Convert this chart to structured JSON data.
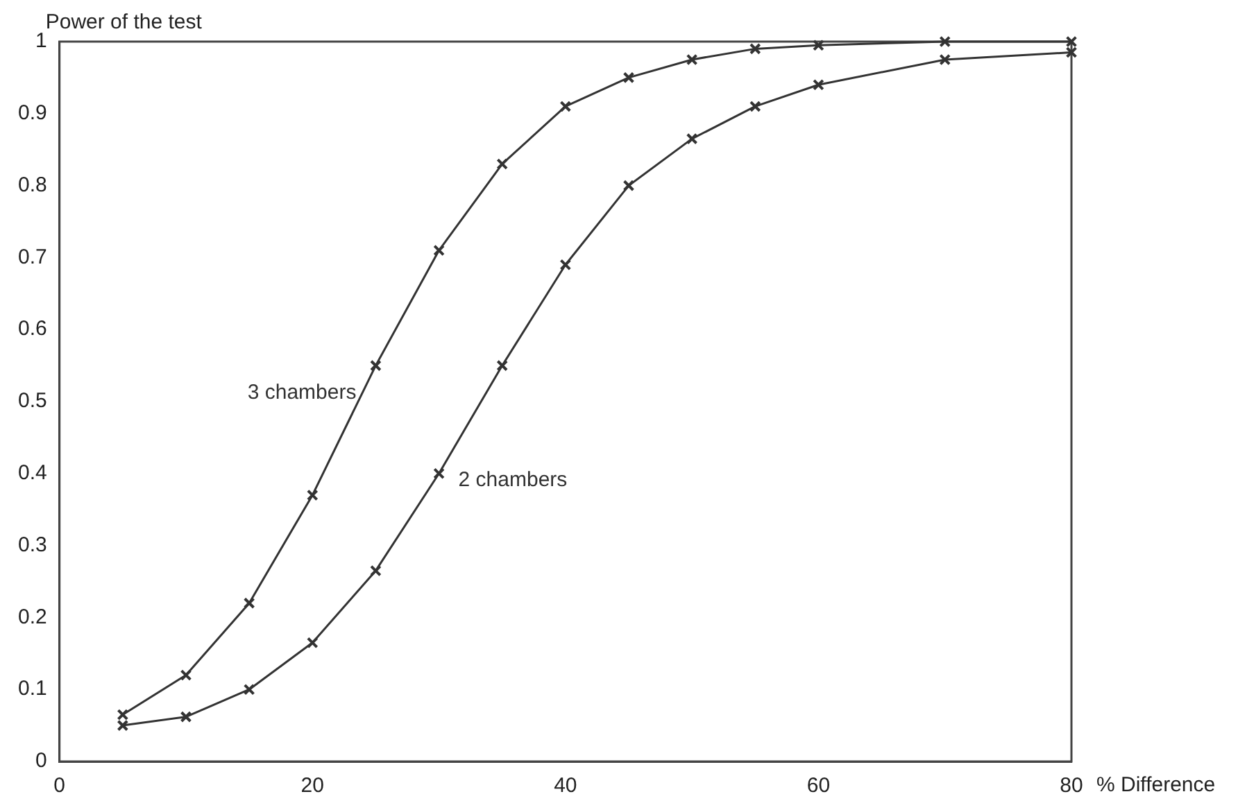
{
  "chart_data": {
    "type": "line",
    "ylabel": "Power of the test",
    "xlabel": "% Difference",
    "x": [
      5,
      10,
      15,
      20,
      25,
      30,
      35,
      40,
      45,
      50,
      55,
      60,
      70,
      80
    ],
    "series": [
      {
        "name": "3 chambers",
        "color": "#333333",
        "values": [
          0.065,
          0.12,
          0.22,
          0.37,
          0.55,
          0.71,
          0.83,
          0.91,
          0.95,
          0.975,
          0.99,
          0.995,
          1,
          1
        ]
      },
      {
        "name": "2 chambers",
        "color": "#333333",
        "values": [
          0.05,
          0.062,
          0.1,
          0.165,
          0.265,
          0.4,
          0.55,
          0.69,
          0.8,
          0.865,
          0.91,
          0.94,
          0.975,
          0.985
        ]
      }
    ],
    "xlim": [
      0,
      80
    ],
    "xticks": [
      0,
      20,
      40,
      60,
      80
    ],
    "ylim": [
      0,
      1
    ],
    "yticks": [
      0,
      0.1,
      0.2,
      0.3,
      0.4,
      0.5,
      0.6,
      0.7,
      0.8,
      0.9,
      1
    ],
    "grid": false,
    "legend": false,
    "marker": "cross",
    "line_style": "solid"
  }
}
